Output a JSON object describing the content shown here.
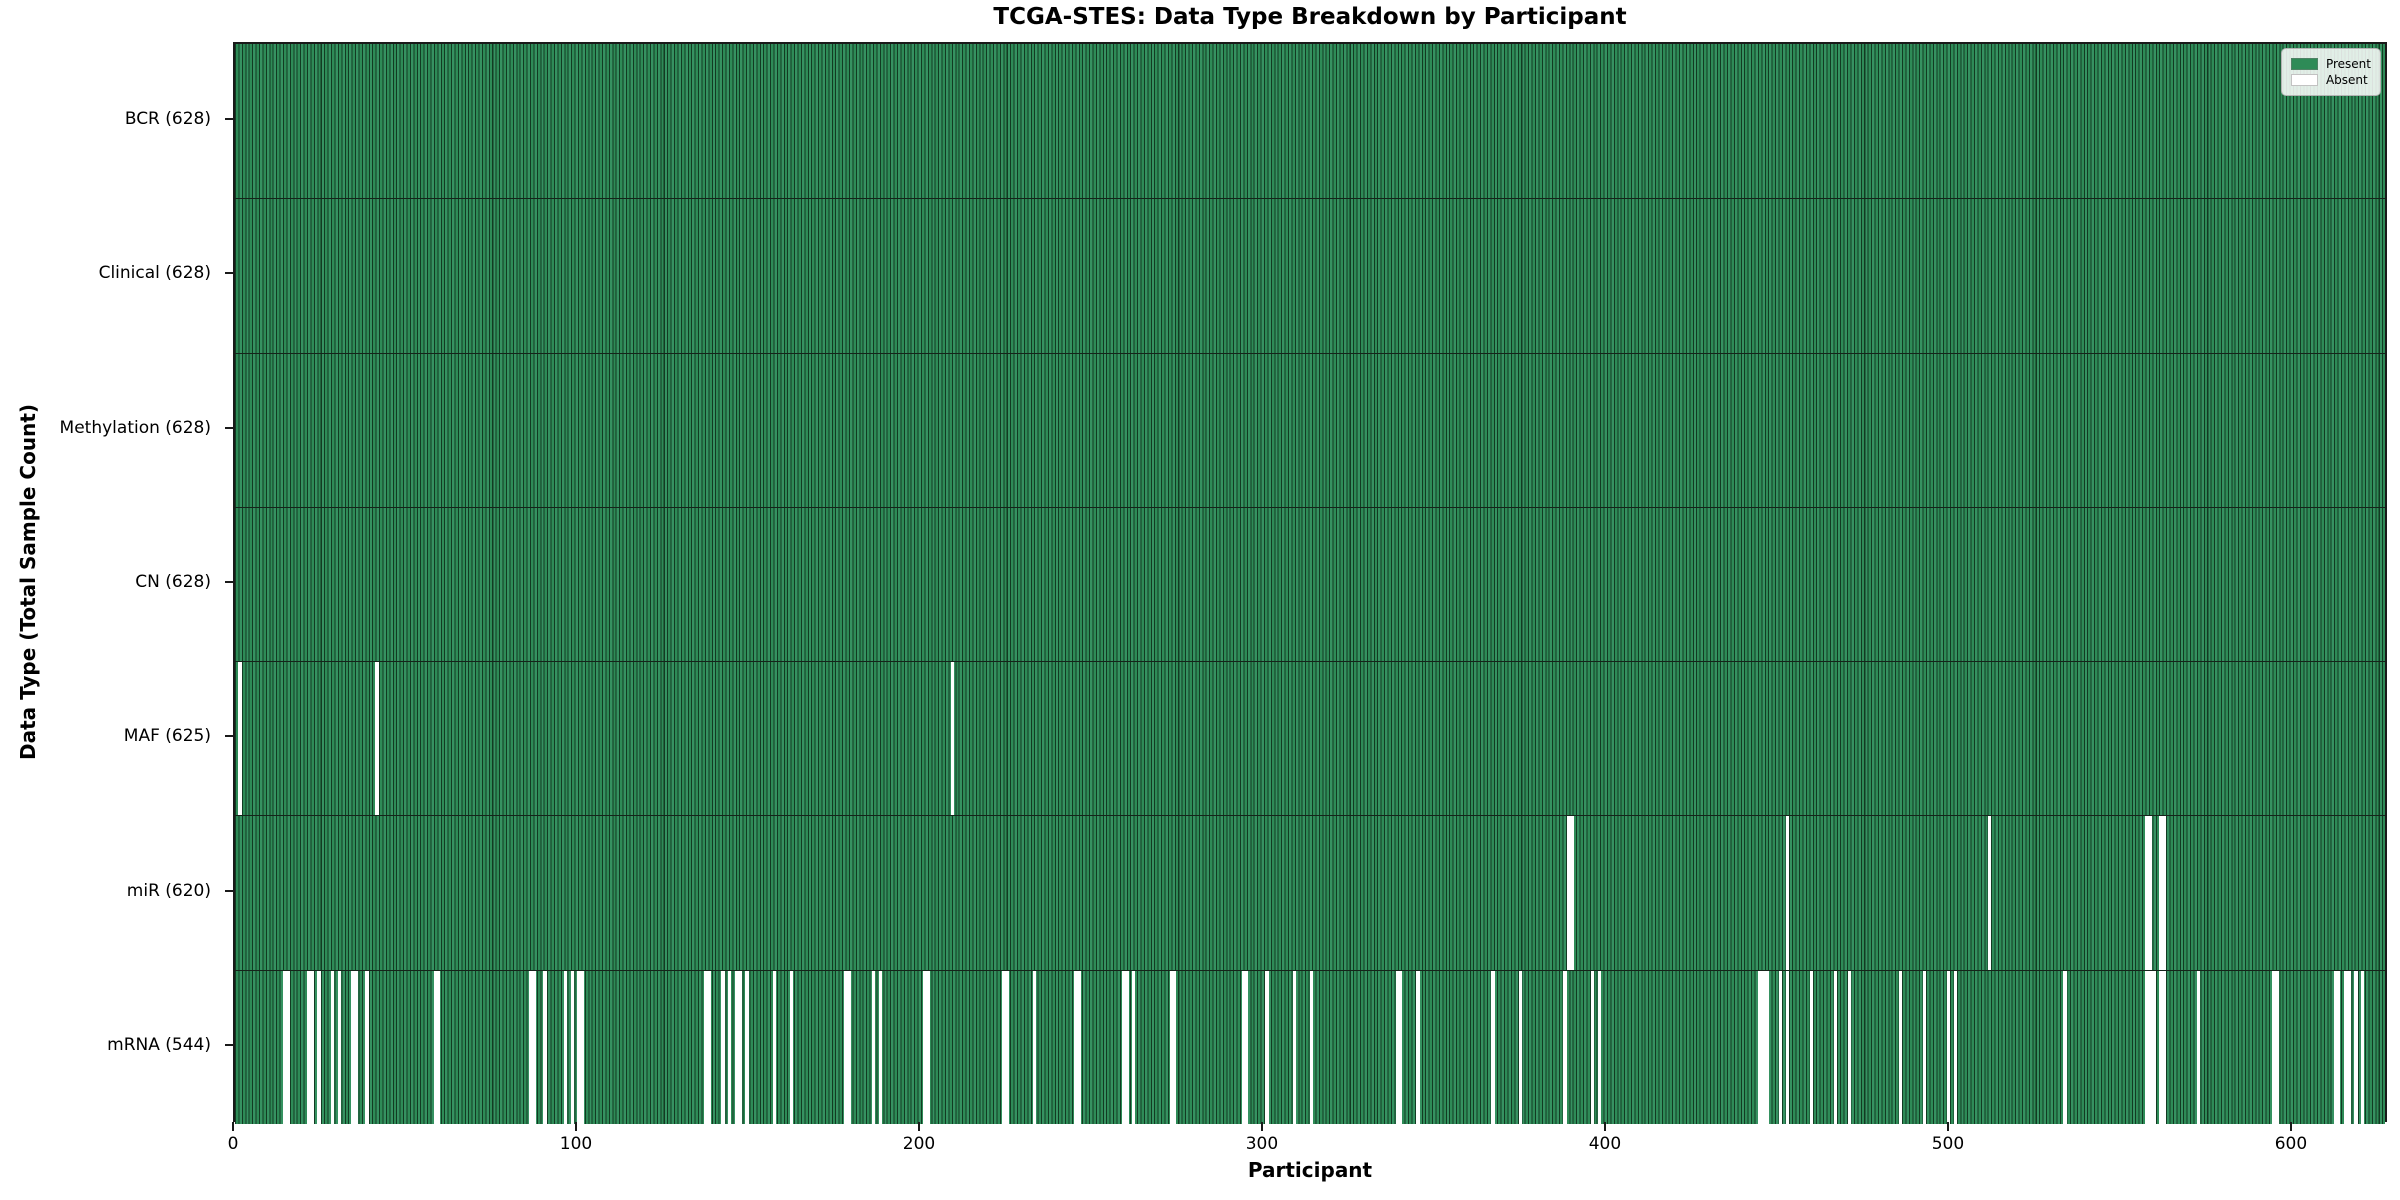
{
  "chart_data": {
    "type": "heatmap",
    "title": "TCGA-STES: Data Type Breakdown by Participant",
    "xlabel": "Participant",
    "ylabel": "Data Type (Total Sample Count)",
    "x_ticks": [
      0,
      100,
      200,
      300,
      400,
      500,
      600
    ],
    "x_range": [
      0,
      628
    ],
    "n_participants": 628,
    "grid": false,
    "colors": {
      "present": "#2e8b57",
      "present_alt": "#369261",
      "absent": "#ffffff",
      "bar_edge": "#123b22",
      "frame": "#1a1a1a"
    },
    "legend": {
      "position": "upper-right",
      "entries": [
        {
          "label": "Present",
          "color": "#2e8b57"
        },
        {
          "label": "Absent",
          "color": "#ffffff"
        }
      ]
    },
    "rows": [
      {
        "label": "BCR (628)",
        "data_type": "BCR",
        "present_count": 628,
        "absent_participants": []
      },
      {
        "label": "Clinical (628)",
        "data_type": "Clinical",
        "present_count": 628,
        "absent_participants": []
      },
      {
        "label": "Methylation (628)",
        "data_type": "Methylation",
        "present_count": 628,
        "absent_participants": []
      },
      {
        "label": "CN (628)",
        "data_type": "CN",
        "present_count": 628,
        "absent_participants": []
      },
      {
        "label": "MAF (625)",
        "data_type": "MAF",
        "present_count": 625,
        "absent_participants": [
          1,
          41,
          209
        ]
      },
      {
        "label": "miR (620)",
        "data_type": "miR",
        "present_count": 620,
        "absent_participants": [
          389,
          390,
          453,
          512,
          558,
          559,
          562,
          563
        ]
      },
      {
        "label": "mRNA (544)",
        "data_type": "mRNA",
        "present_count": 544,
        "absent_participants": [
          14,
          15,
          21,
          22,
          24,
          28,
          30,
          34,
          35,
          38,
          58,
          59,
          86,
          87,
          90,
          96,
          98,
          100,
          101,
          137,
          138,
          142,
          144,
          146,
          147,
          149,
          157,
          162,
          178,
          179,
          186,
          188,
          201,
          202,
          224,
          225,
          233,
          245,
          246,
          259,
          260,
          262,
          273,
          274,
          294,
          295,
          301,
          309,
          314,
          339,
          340,
          345,
          367,
          375,
          388,
          396,
          398,
          445,
          446,
          447,
          451,
          453,
          460,
          467,
          471,
          486,
          493,
          500,
          502,
          534,
          558,
          559,
          560,
          562,
          563,
          573,
          595,
          596,
          613,
          614,
          616,
          617,
          619,
          621
        ]
      }
    ]
  }
}
